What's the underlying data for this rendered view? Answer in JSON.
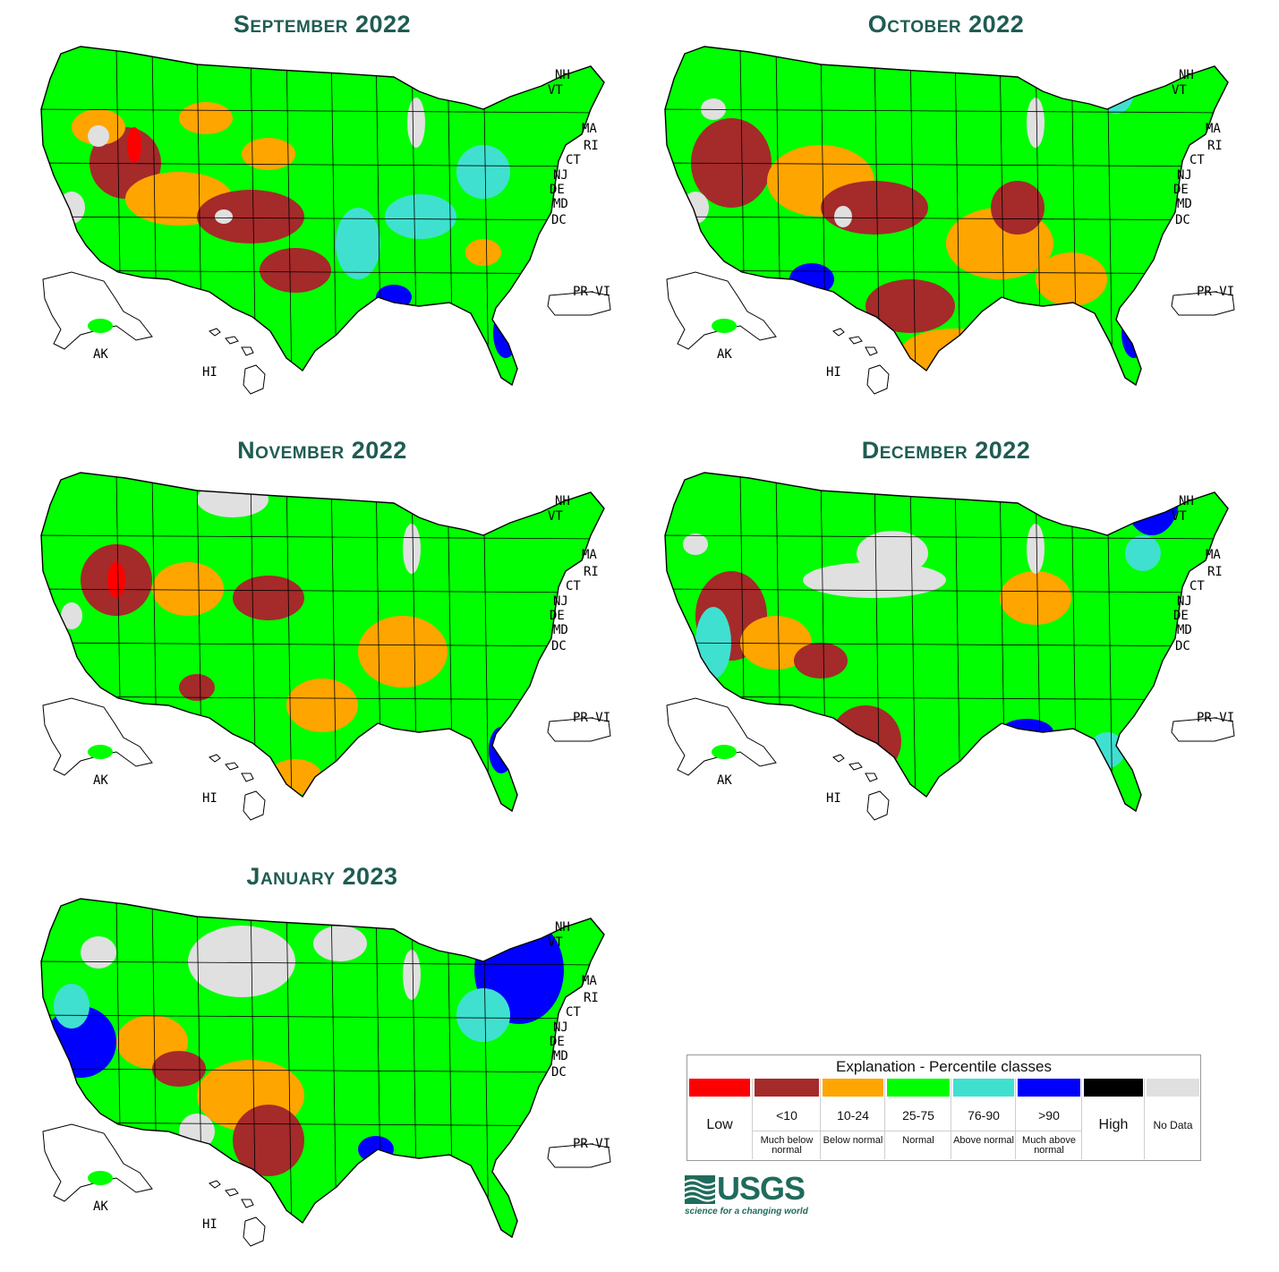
{
  "colors": {
    "low": "#ff0000",
    "much_below": "#a52a2a",
    "below": "#ffa500",
    "normal": "#00ff00",
    "above": "#40e0d0",
    "much_above": "#0000ff",
    "high": "#000000",
    "no_data": "#e0e0e0"
  },
  "maps": [
    {
      "title": "September 2022",
      "dominant_class": "normal"
    },
    {
      "title": "October 2022",
      "dominant_class": "normal"
    },
    {
      "title": "November 2022",
      "dominant_class": "normal"
    },
    {
      "title": "December 2022",
      "dominant_class": "normal"
    },
    {
      "title": "January 2023",
      "dominant_class": "normal"
    }
  ],
  "state_labels": {
    "nh": "NH",
    "vt": "VT",
    "ma": "MA",
    "ri": "RI",
    "ct": "CT",
    "nj": "NJ",
    "de": "DE",
    "md": "MD",
    "dc": "DC",
    "pr_vi": "PR-VI",
    "ak": "AK",
    "hi": "HI"
  },
  "legend": {
    "title": "Explanation - Percentile classes",
    "classes": [
      {
        "key": "low",
        "label": "Low",
        "desc": ""
      },
      {
        "key": "much_below",
        "label": "<10",
        "desc": "Much below normal"
      },
      {
        "key": "below",
        "label": "10-24",
        "desc": "Below normal"
      },
      {
        "key": "normal",
        "label": "25-75",
        "desc": "Normal"
      },
      {
        "key": "above",
        "label": "76-90",
        "desc": "Above normal"
      },
      {
        "key": "much_above",
        "label": ">90",
        "desc": "Much above normal"
      },
      {
        "key": "high",
        "label": "High",
        "desc": ""
      },
      {
        "key": "no_data",
        "label": "No Data",
        "desc": ""
      }
    ]
  },
  "logo": {
    "name": "USGS",
    "tagline": "science for a changing world"
  }
}
